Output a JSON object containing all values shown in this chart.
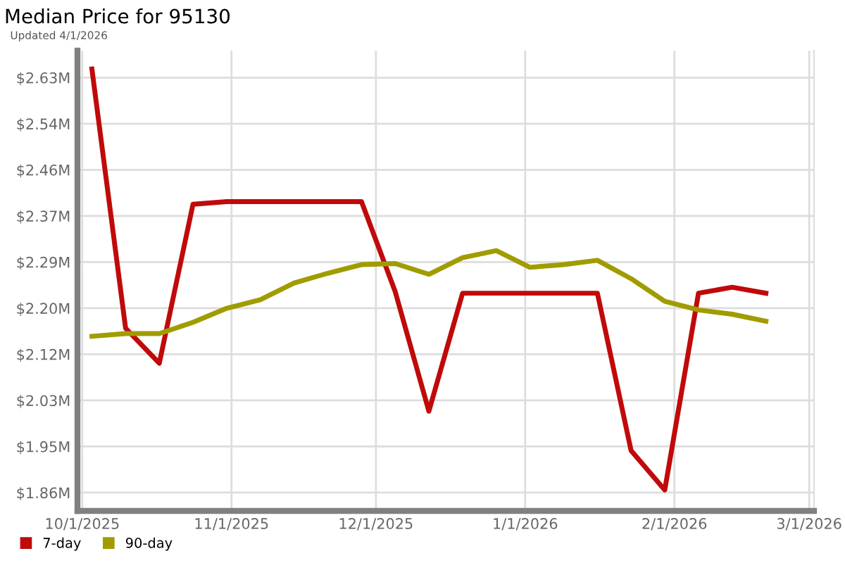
{
  "chart_data": {
    "type": "line",
    "title": "Median Price for 95130",
    "subtitle": "Updated 4/1/2026",
    "x": [
      "2025-10-03",
      "2025-10-10",
      "2025-10-17",
      "2025-10-24",
      "2025-10-31",
      "2025-11-07",
      "2025-11-14",
      "2025-11-21",
      "2025-11-28",
      "2025-12-05",
      "2025-12-12",
      "2025-12-19",
      "2025-12-26",
      "2026-01-02",
      "2026-01-09",
      "2026-01-16",
      "2026-01-23",
      "2026-01-30",
      "2026-02-06",
      "2026-02-13",
      "2026-02-20"
    ],
    "series": [
      {
        "name": "7-day",
        "color": "#c00a0a",
        "values": [
          2.646,
          2.165,
          2.1,
          2.395,
          2.4,
          2.4,
          2.4,
          2.4,
          2.4,
          2.233,
          2.011,
          2.23,
          2.23,
          2.23,
          2.23,
          2.23,
          1.938,
          1.865,
          2.23,
          2.241,
          2.23
        ]
      },
      {
        "name": "90-day",
        "color": "#a09c00",
        "values": [
          2.15,
          2.155,
          2.155,
          2.176,
          2.202,
          2.218,
          2.249,
          2.267,
          2.283,
          2.285,
          2.265,
          2.296,
          2.309,
          2.278,
          2.283,
          2.291,
          2.257,
          2.215,
          2.199,
          2.191,
          2.178
        ]
      }
    ],
    "xlim": [
      "2025-09-30",
      "2026-03-02"
    ],
    "xticks": [
      {
        "value": "2025-10-01",
        "label": "10/1/2025"
      },
      {
        "value": "2025-11-01",
        "label": "11/1/2025"
      },
      {
        "value": "2025-12-01",
        "label": "12/1/2025"
      },
      {
        "value": "2026-01-01",
        "label": "1/1/2026"
      },
      {
        "value": "2026-02-01",
        "label": "2/1/2026"
      },
      {
        "value": "2026-03-01",
        "label": "3/1/2026"
      }
    ],
    "ylim": [
      1.826,
      2.68
    ],
    "yticks": [
      {
        "value": 1.86,
        "label": "$1.86M"
      },
      {
        "value": 1.9456,
        "label": "$1.95M"
      },
      {
        "value": 2.0311,
        "label": "$2.03M"
      },
      {
        "value": 2.1167,
        "label": "$2.12M"
      },
      {
        "value": 2.2022,
        "label": "$2.20M"
      },
      {
        "value": 2.2878,
        "label": "$2.29M"
      },
      {
        "value": 2.3733,
        "label": "$2.37M"
      },
      {
        "value": 2.4589,
        "label": "$2.46M"
      },
      {
        "value": 2.5444,
        "label": "$2.54M"
      },
      {
        "value": 2.63,
        "label": "$2.63M"
      }
    ],
    "grid": true,
    "legend": "bottom left",
    "marker": "none",
    "line_style": "solid"
  }
}
